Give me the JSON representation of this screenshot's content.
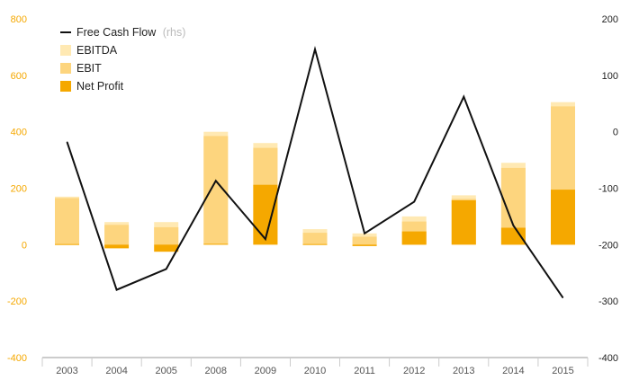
{
  "chart_data": {
    "type": "bar",
    "categories": [
      "2003",
      "2004",
      "2005",
      "2008",
      "2009",
      "2010",
      "2011",
      "2012",
      "2013",
      "2014",
      "2015"
    ],
    "left_axis": {
      "min": -400,
      "max": 800,
      "ticks": [
        -400,
        -200,
        0,
        200,
        400,
        600,
        800
      ],
      "color": "#f5a800"
    },
    "right_axis": {
      "min": -400,
      "max": 200,
      "ticks": [
        -400,
        -300,
        -200,
        -100,
        0,
        100,
        200
      ]
    },
    "series": [
      {
        "name": "EBITDA",
        "kind": "bar",
        "axis": "left",
        "color": "#ffe9b3",
        "values": [
          170,
          80,
          80,
          400,
          360,
          55,
          40,
          100,
          175,
          290,
          505
        ]
      },
      {
        "name": "EBIT",
        "kind": "bar",
        "axis": "left",
        "color": "#fdd57e",
        "values": [
          165,
          70,
          62,
          385,
          343,
          42,
          28,
          82,
          162,
          272,
          490
        ]
      },
      {
        "name": "Net Profit",
        "kind": "bar",
        "axis": "left",
        "color": "#f5a800",
        "values": [
          2,
          -13,
          -25,
          3,
          212,
          2,
          -5,
          47,
          157,
          60,
          195
        ]
      },
      {
        "name": "Free Cash Flow",
        "suffix": "(rhs)",
        "kind": "line",
        "axis": "right",
        "color": "#111111",
        "values": [
          -18,
          -280,
          -243,
          -87,
          -190,
          146,
          -180,
          -124,
          62,
          -166,
          -294
        ]
      }
    ],
    "legend": "top-left",
    "grid": false
  }
}
